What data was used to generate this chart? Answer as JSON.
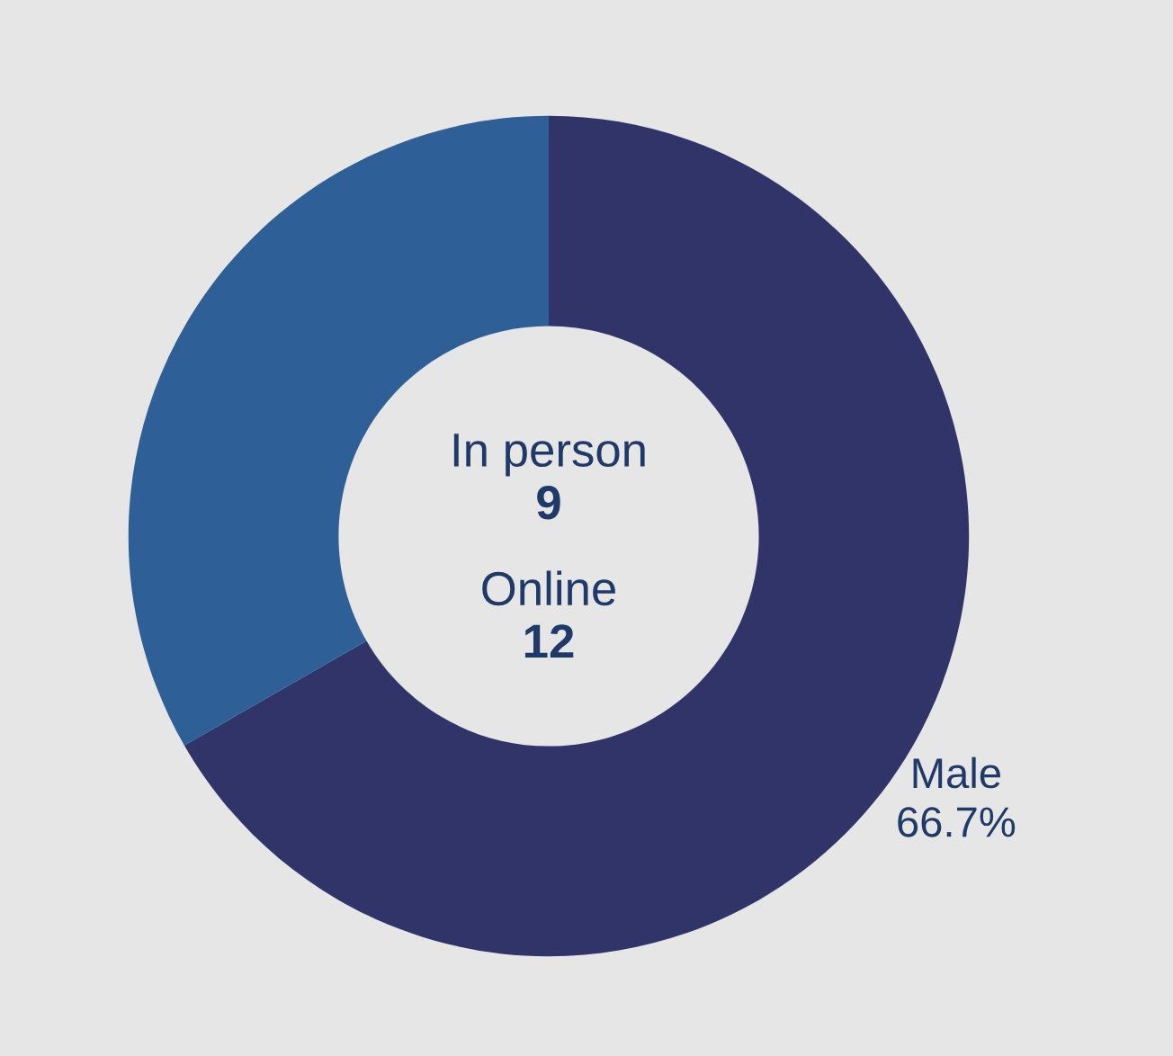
{
  "chart_data": {
    "type": "donut",
    "categories": [
      "Male",
      null
    ],
    "values": [
      66.7,
      33.3
    ],
    "colors": [
      "#303469",
      "#2e5f96"
    ],
    "value_labels": [
      "66.7%",
      null
    ],
    "annotations": [
      "In person",
      "9",
      "Online",
      "12"
    ],
    "legend": false
  }
}
